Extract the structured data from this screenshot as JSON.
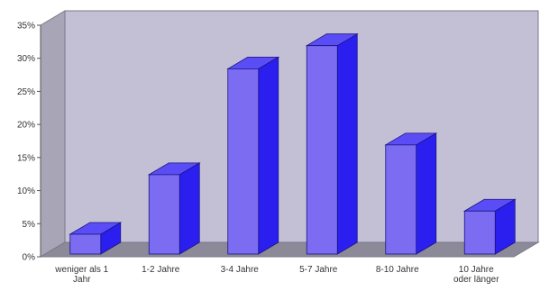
{
  "chart_data": {
    "type": "bar",
    "title": "",
    "xlabel": "",
    "ylabel": "",
    "categories": [
      [
        "weniger als 1",
        "Jahr"
      ],
      [
        "1-2 Jahre"
      ],
      [
        "3-4 Jahre"
      ],
      [
        "5-7 Jahre"
      ],
      [
        "8-10 Jahre"
      ],
      [
        "10 Jahre",
        "oder länger"
      ]
    ],
    "values": [
      3,
      12,
      28,
      31.5,
      16.5,
      6.5
    ],
    "ylim": [
      0,
      35
    ],
    "yticks": [
      "0%",
      "5%",
      "10%",
      "15%",
      "20%",
      "25%",
      "30%",
      "35%"
    ],
    "grid": false,
    "legend": "none",
    "three_d": true,
    "colors": {
      "bar_front": "#7b6cf2",
      "bar_side": "#2b1ff0",
      "bar_top": "#5a4df5",
      "bar_outline": "#1a1580",
      "back_wall": "#c3c0d6",
      "side_wall": "#a8a6b6",
      "floor": "#8c8a98",
      "wall_edge": "#7a7888"
    }
  }
}
